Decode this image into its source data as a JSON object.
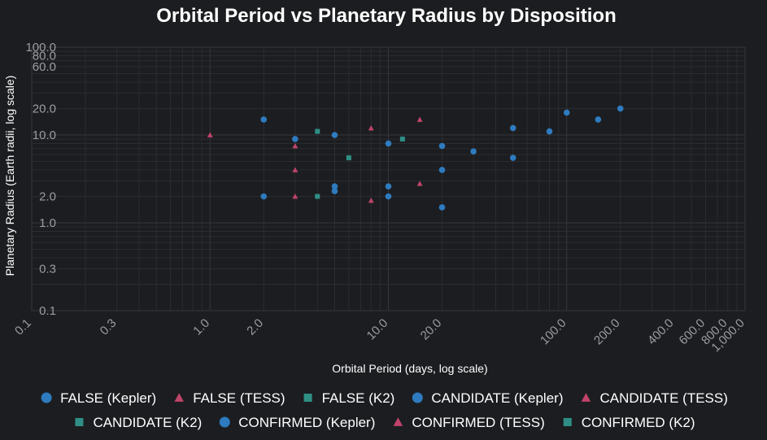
{
  "chart_data": {
    "type": "scatter",
    "title": "Orbital Period vs Planetary Radius by Disposition",
    "xlabel": "Orbital Period (days, log scale)",
    "ylabel": "Planetary Radius (Earth radii, log scale)",
    "x_scale": "log",
    "y_scale": "log",
    "xlim": [
      0.1,
      1000
    ],
    "ylim": [
      0.1,
      100
    ],
    "x_ticks": [
      "0.1",
      "0.3",
      "1.0",
      "2.0",
      "10.0",
      "20.0",
      "100.0",
      "200.0",
      "400.0",
      "600.0",
      "800.0",
      "1,000.0"
    ],
    "x_tick_values": [
      0.1,
      0.3,
      1,
      2,
      10,
      20,
      100,
      200,
      400,
      600,
      800,
      1000
    ],
    "y_ticks": [
      "0.1",
      "0.3",
      "1.0",
      "2.0",
      "10.0",
      "20.0",
      "60.0",
      "80.0",
      "100.0"
    ],
    "y_tick_values": [
      0.1,
      0.3,
      1,
      2,
      10,
      20,
      60,
      80,
      100
    ],
    "grid": true,
    "legend_position": "bottom",
    "series": [
      {
        "name": "FALSE (Kepler)",
        "marker": "circle",
        "color": "#2e7bbf",
        "points": []
      },
      {
        "name": "FALSE (TESS)",
        "marker": "triangle",
        "color": "#c0446a",
        "points": []
      },
      {
        "name": "FALSE (K2)",
        "marker": "square",
        "color": "#2f8f86",
        "points": []
      },
      {
        "name": "CANDIDATE (Kepler)",
        "marker": "circle",
        "color": "#2e7bbf",
        "points": []
      },
      {
        "name": "CANDIDATE (TESS)",
        "marker": "triangle",
        "color": "#c0446a",
        "points": []
      },
      {
        "name": "CANDIDATE (K2)",
        "marker": "square",
        "color": "#2f8f86",
        "points": []
      },
      {
        "name": "CONFIRMED (Kepler)",
        "marker": "circle",
        "color": "#2e7bbf",
        "points": [
          [
            2,
            15
          ],
          [
            2,
            2
          ],
          [
            3,
            9
          ],
          [
            5,
            10
          ],
          [
            5,
            2.6
          ],
          [
            5,
            2.3
          ],
          [
            10,
            8
          ],
          [
            10,
            2.6
          ],
          [
            10,
            2
          ],
          [
            20,
            7.5
          ],
          [
            20,
            4
          ],
          [
            20,
            1.5
          ],
          [
            30,
            6.5
          ],
          [
            50,
            12
          ],
          [
            50,
            5.5
          ],
          [
            80,
            11
          ],
          [
            100,
            18
          ],
          [
            150,
            15
          ],
          [
            200,
            20
          ]
        ]
      },
      {
        "name": "CONFIRMED (TESS)",
        "marker": "triangle",
        "color": "#c0446a",
        "points": [
          [
            1,
            10
          ],
          [
            3,
            7.5
          ],
          [
            3,
            4
          ],
          [
            3,
            2
          ],
          [
            8,
            12
          ],
          [
            8,
            1.8
          ],
          [
            15,
            15
          ],
          [
            15,
            2.8
          ]
        ]
      },
      {
        "name": "CONFIRMED (K2)",
        "marker": "square",
        "color": "#2f8f86",
        "points": [
          [
            4,
            11
          ],
          [
            4,
            2
          ],
          [
            6,
            5.5
          ],
          [
            12,
            9
          ]
        ]
      }
    ]
  }
}
